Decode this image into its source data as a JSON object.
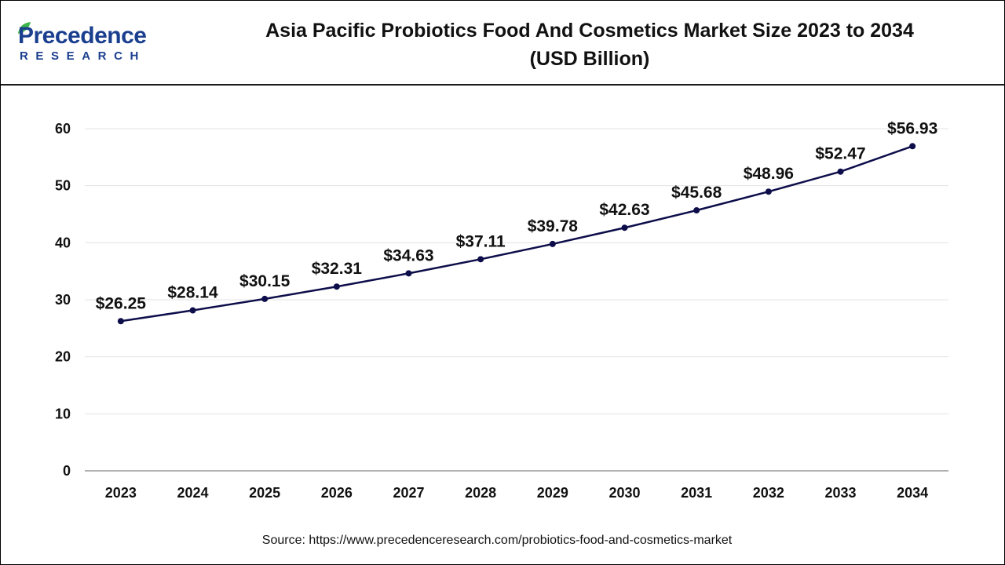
{
  "header": {
    "logo_main": "Precedence",
    "logo_sub": "RESEARCH",
    "title_line1": "Asia Pacific Probiotics Food And Cosmetics Market Size 2023 to 2034",
    "title_line2": "(USD Billion)"
  },
  "source": "Source: https://www.precedenceresearch.com/probiotics-food-and-cosmetics-market",
  "colors": {
    "line": "#0d0d4a",
    "brand": "#1b3f8f",
    "leaf": "#3db54a"
  },
  "chart_data": {
    "type": "line",
    "categories": [
      "2023",
      "2024",
      "2025",
      "2026",
      "2027",
      "2028",
      "2029",
      "2030",
      "2031",
      "2032",
      "2033",
      "2034"
    ],
    "series": [
      {
        "values": [
          26.25,
          28.14,
          30.15,
          32.31,
          34.63,
          37.11,
          39.78,
          42.63,
          45.68,
          48.96,
          52.47,
          56.93
        ]
      }
    ],
    "data_labels": [
      "$26.25",
      "$28.14",
      "$30.15",
      "$32.31",
      "$34.63",
      "$37.11",
      "$39.78",
      "$42.63",
      "$45.68",
      "$48.96",
      "$52.47",
      "$56.93"
    ],
    "y_ticks": [
      "0",
      "10",
      "20",
      "30",
      "40",
      "50",
      "60"
    ],
    "ylim": [
      0,
      60
    ],
    "grid": true,
    "legend": "none"
  }
}
